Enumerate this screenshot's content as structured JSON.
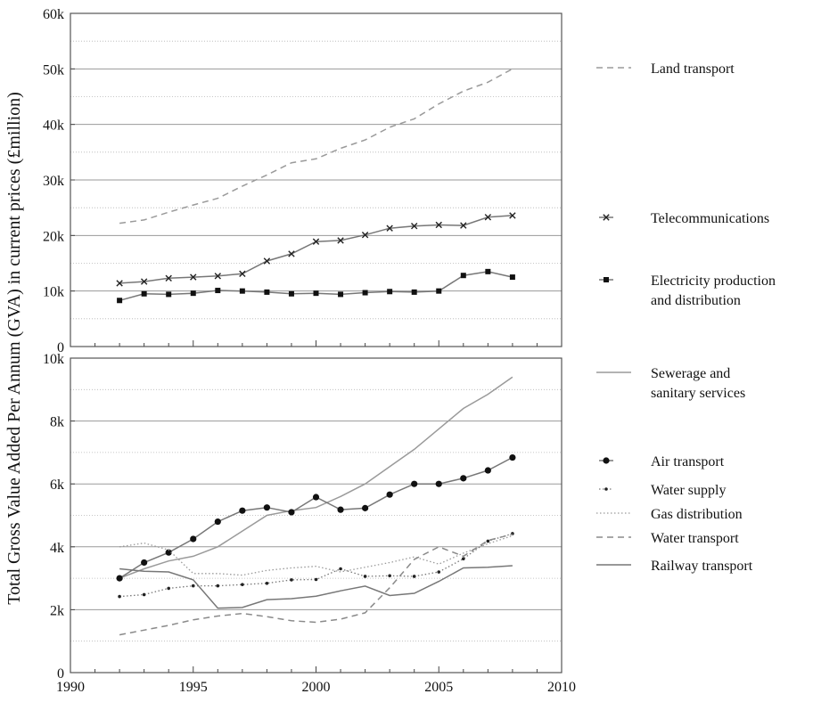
{
  "chart_data": {
    "type": "line",
    "ylabel": "Total Gross Value Added Per Annum (GVA) in current prices (£million)",
    "x_ticks": [
      "1990",
      "1995",
      "2000",
      "2005",
      "2010"
    ],
    "xlim": [
      1990,
      2010
    ],
    "grid": true,
    "legend_placement": "right",
    "panels": [
      {
        "name": "top",
        "ylim": [
          0,
          60000
        ],
        "y_ticks": [
          "0",
          "10k",
          "20k",
          "30k",
          "40k",
          "50k",
          "60k"
        ],
        "series": [
          {
            "name": "Land transport",
            "style": "dashed",
            "color": "#9a9a9a",
            "marker": "none",
            "x": [
              1992,
              1993,
              1994,
              1995,
              1996,
              1997,
              1998,
              1999,
              2000,
              2001,
              2002,
              2003,
              2004,
              2005,
              2006,
              2007,
              2008
            ],
            "values": [
              22200,
              22800,
              24200,
              25500,
              26700,
              28900,
              30900,
              33100,
              33800,
              35700,
              37200,
              39500,
              41000,
              43700,
              46000,
              47600,
              50000
            ]
          },
          {
            "name": "Telecommunications",
            "style": "solid",
            "color": "#777777",
            "marker": "x",
            "x": [
              1992,
              1993,
              1994,
              1995,
              1996,
              1997,
              1998,
              1999,
              2000,
              2001,
              2002,
              2003,
              2004,
              2005,
              2006,
              2007,
              2008
            ],
            "values": [
              11400,
              11700,
              12300,
              12500,
              12700,
              13100,
              15400,
              16700,
              18900,
              19100,
              20100,
              21300,
              21700,
              21900,
              21800,
              23300,
              23600
            ]
          },
          {
            "name": "Electricity production and distribution",
            "style": "solid",
            "color": "#777777",
            "marker": "square",
            "x": [
              1992,
              1993,
              1994,
              1995,
              1996,
              1997,
              1998,
              1999,
              2000,
              2001,
              2002,
              2003,
              2004,
              2005,
              2006,
              2007,
              2008
            ],
            "values": [
              8300,
              9500,
              9400,
              9600,
              10100,
              10000,
              9800,
              9500,
              9600,
              9400,
              9700,
              9900,
              9800,
              10000,
              12800,
              13500,
              12500
            ]
          }
        ]
      },
      {
        "name": "bottom",
        "ylim": [
          0,
          10000
        ],
        "y_ticks": [
          "0",
          "2k",
          "4k",
          "6k",
          "8k",
          "10k"
        ],
        "series": [
          {
            "name": "Sewerage and sanitary services",
            "style": "solid",
            "color": "#9a9a9a",
            "marker": "none",
            "x": [
              1992,
              1993,
              1994,
              1995,
              1996,
              1997,
              1998,
              1999,
              2000,
              2001,
              2002,
              2003,
              2004,
              2005,
              2006,
              2007,
              2008
            ],
            "values": [
              3000,
              3300,
              3550,
              3700,
              4000,
              4500,
              5000,
              5150,
              5250,
              5600,
              6000,
              6550,
              7100,
              7750,
              8400,
              8850,
              9400
            ]
          },
          {
            "name": "Air transport",
            "style": "solid",
            "color": "#777777",
            "marker": "circle",
            "x": [
              1992,
              1993,
              1994,
              1995,
              1996,
              1997,
              1998,
              1999,
              2000,
              2001,
              2002,
              2003,
              2004,
              2005,
              2006,
              2007,
              2008
            ],
            "values": [
              3000,
              3500,
              3820,
              4250,
              4800,
              5150,
              5250,
              5100,
              5580,
              5180,
              5230,
              5660,
              6000,
              6000,
              6180,
              6430,
              6840
            ]
          },
          {
            "name": "Water supply",
            "style": "dotted",
            "color": "#777777",
            "marker": "dot",
            "x": [
              1992,
              1993,
              1994,
              1995,
              1996,
              1997,
              1998,
              1999,
              2000,
              2001,
              2002,
              2003,
              2004,
              2005,
              2006,
              2007,
              2008
            ],
            "values": [
              2420,
              2480,
              2680,
              2760,
              2760,
              2800,
              2840,
              2950,
              2960,
              3300,
              3060,
              3080,
              3060,
              3200,
              3620,
              4180,
              4420
            ]
          },
          {
            "name": "Gas distribution",
            "style": "dotted",
            "color": "#9a9a9a",
            "marker": "none",
            "x": [
              1992,
              1993,
              1994,
              1995,
              1996,
              1997,
              1998,
              1999,
              2000,
              2001,
              2002,
              2003,
              2004,
              2005,
              2006,
              2007,
              2008
            ],
            "values": [
              4000,
              4120,
              3900,
              3150,
              3150,
              3100,
              3250,
              3330,
              3380,
              3200,
              3350,
              3500,
              3680,
              3450,
              3800,
              4100,
              4350
            ]
          },
          {
            "name": "Water transport",
            "style": "dashed",
            "color": "#8a8a8a",
            "marker": "none",
            "x": [
              1992,
              1993,
              1994,
              1995,
              1996,
              1997,
              1998,
              1999,
              2000,
              2001,
              2002,
              2003,
              2004,
              2005,
              2006,
              2007,
              2008
            ],
            "values": [
              1200,
              1350,
              1500,
              1680,
              1800,
              1880,
              1780,
              1650,
              1600,
              1700,
              1900,
              2700,
              3600,
              4000,
              3700,
              4200,
              4400
            ]
          },
          {
            "name": "Railway transport",
            "style": "solid",
            "color": "#777777",
            "marker": "none",
            "x": [
              1992,
              1993,
              1994,
              1995,
              1996,
              1997,
              1998,
              1999,
              2000,
              2001,
              2002,
              2003,
              2004,
              2005,
              2006,
              2007,
              2008
            ],
            "values": [
              3300,
              3220,
              3200,
              2950,
              2050,
              2070,
              2320,
              2350,
              2430,
              2600,
              2750,
              2450,
              2520,
              2900,
              3330,
              3350,
              3400
            ]
          }
        ]
      }
    ],
    "legend": [
      {
        "panel": 0,
        "series": 0,
        "lines": [
          "Land transport"
        ]
      },
      {
        "panel": 0,
        "series": 1,
        "lines": [
          "Telecommunications"
        ]
      },
      {
        "panel": 0,
        "series": 2,
        "lines": [
          "Electricity production",
          "and distribution"
        ]
      },
      {
        "panel": 1,
        "series": 0,
        "lines": [
          "Sewerage and",
          "sanitary services"
        ]
      },
      {
        "panel": 1,
        "series": 1,
        "lines": [
          "Air transport"
        ]
      },
      {
        "panel": 1,
        "series": 2,
        "lines": [
          "Water supply"
        ]
      },
      {
        "panel": 1,
        "series": 3,
        "lines": [
          "Gas distribution"
        ]
      },
      {
        "panel": 1,
        "series": 4,
        "lines": [
          "Water transport"
        ]
      },
      {
        "panel": 1,
        "series": 5,
        "lines": [
          "Railway transport"
        ]
      }
    ]
  }
}
